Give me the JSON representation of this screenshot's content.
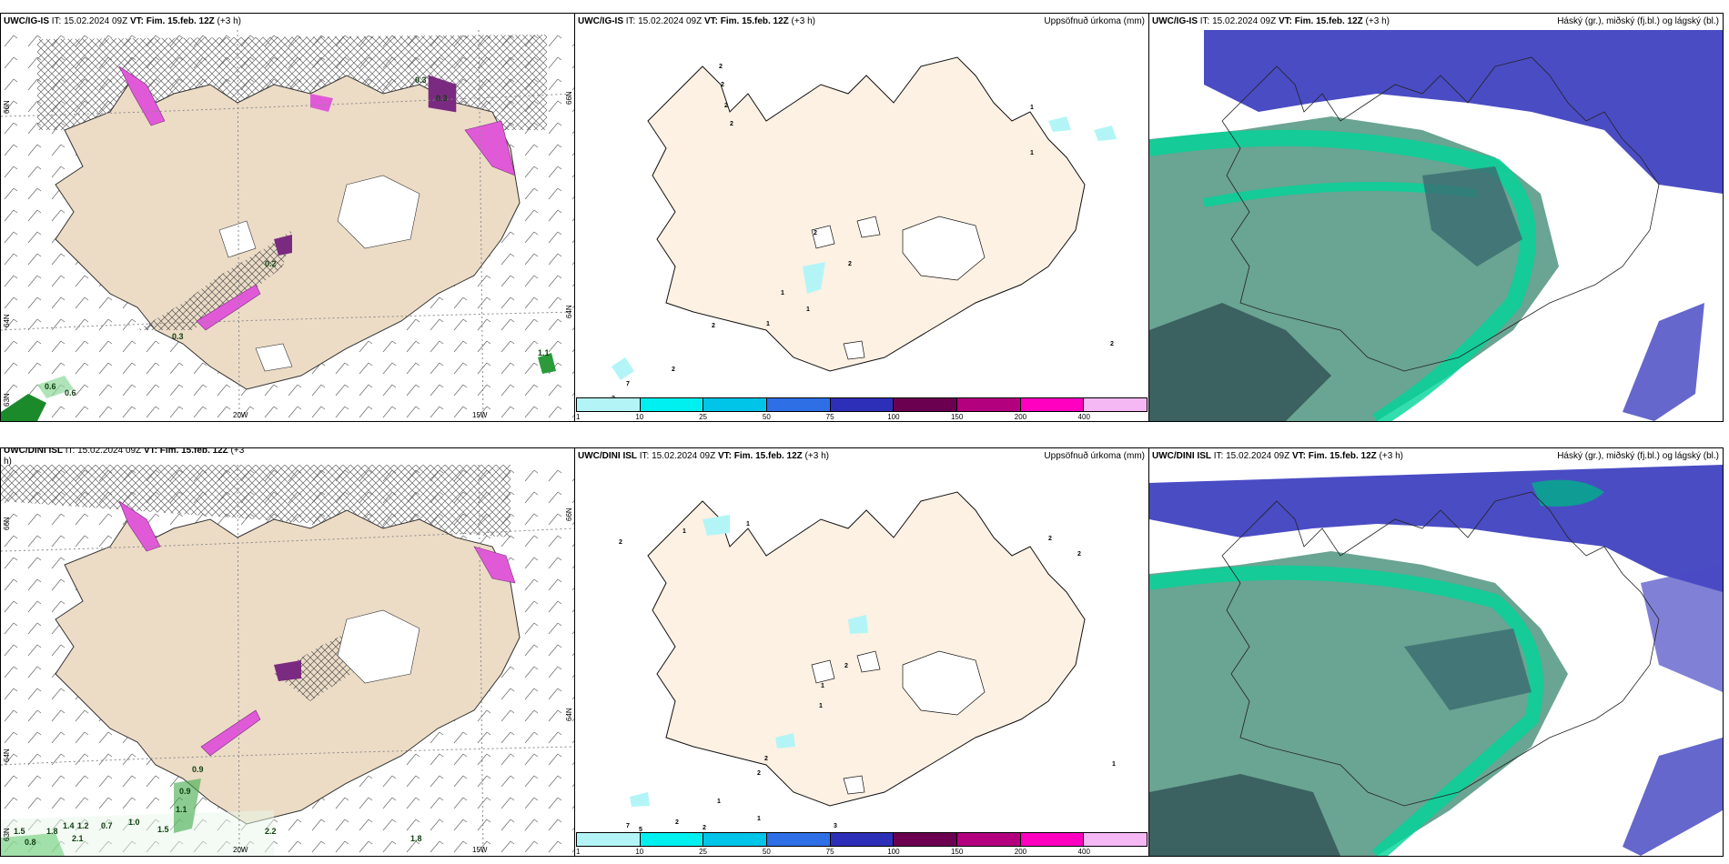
{
  "panels": [
    {
      "id": "tl",
      "title_model": "UWC/IG-IS",
      "it_label": " IT: ",
      "it_value": "15.02.2024 09Z",
      "vt_label": " VT: ",
      "vt_value": "Fim. 15.feb. 12Z",
      "lead": " (+3 h)",
      "right_label": ""
    },
    {
      "id": "tm",
      "title_model": "UWC/IG-IS",
      "it_label": " IT: ",
      "it_value": "15.02.2024 09Z",
      "vt_label": " VT: ",
      "vt_value": "Fim. 15.feb. 12Z",
      "lead": " (+3 h)",
      "right_label": "Uppsöfnuð úrkoma (mm)"
    },
    {
      "id": "tr",
      "title_model": "UWC/IG-IS",
      "it_label": " IT: ",
      "it_value": "15.02.2024 09Z",
      "vt_label": " VT: ",
      "vt_value": "Fim. 15.feb. 12Z",
      "lead": " (+3 h)",
      "right_label": "Háský (gr.), miðský (fj.bl.) og lágský (bl.)"
    },
    {
      "id": "bl",
      "title_model": "UWC/DINI ISL",
      "it_label": " IT: ",
      "it_value": "15.02.2024 09Z",
      "vt_label": " VT: ",
      "vt_value": "Fim. 15.feb. 12Z",
      "lead": " (+3",
      "right_label": ""
    },
    {
      "id": "bm",
      "title_model": "UWC/DINI ISL",
      "it_label": " IT: ",
      "it_value": "15.02.2024 09Z",
      "vt_label": " VT: ",
      "vt_value": "Fim. 15.feb. 12Z",
      "lead": " (+3 h)",
      "right_label": "Uppsöfnuð úrkoma (mm)"
    },
    {
      "id": "br",
      "title_model": "UWC/DINI ISL",
      "it_label": " IT: ",
      "it_value": "15.02.2024 09Z",
      "vt_label": " VT: ",
      "vt_value": "Fim. 15.feb. 12Z",
      "lead": " (+3 h)",
      "right_label": "Háský (gr.), miðský (fj.bl.) og lágský (bl.)"
    }
  ],
  "bl_wrap": "h)",
  "legend": {
    "colors": [
      "#b3f5f7",
      "#00f0f0",
      "#00c4e8",
      "#2e6fe6",
      "#2e2fb8",
      "#6b0050",
      "#b3007e",
      "#ff00c0",
      "#f5b8f5"
    ],
    "ticks": [
      "1",
      "10",
      "25",
      "50",
      "75",
      "100",
      "150",
      "200",
      "400"
    ]
  },
  "axis_labels": {
    "lon_20": "20W",
    "lon_15": "15W",
    "lat_66": "66N",
    "lat_64": "64N",
    "lat_63": "63N",
    "lat_65": "65N"
  },
  "values_top_left": [
    "0.6",
    "0.6",
    "1.1",
    "0.3",
    "0.2",
    "0.3",
    "0.3"
  ],
  "values_bottom_left": [
    "0.9",
    "0.9",
    "1.1",
    "1.5",
    "1.8",
    "1.4",
    "1.2",
    "0.7",
    "1.0",
    "1.5",
    "2.2",
    "0.8",
    "2.1",
    "1.8"
  ],
  "precip_top_mid": [
    "2",
    "2",
    "2",
    "2",
    "1",
    "1",
    "2",
    "2",
    "1",
    "1",
    "1",
    "2",
    "2",
    "7",
    "2",
    "2"
  ],
  "precip_bottom_mid": [
    "1",
    "2",
    "1",
    "2",
    "2",
    "2",
    "1",
    "1",
    "2",
    "2",
    "1",
    "7",
    "5",
    "2",
    "3",
    "2",
    "1",
    "1"
  ],
  "colors": {
    "land": "#ecdcc6",
    "land_light": "#fdf1e3",
    "sea": "#ffffff",
    "high_cloud": "#3d3fbf",
    "mid_cloud": "#00c48a",
    "low_cloud": "#3a6a70",
    "pink": "#e05ad8",
    "purple": "#7a2a80"
  }
}
